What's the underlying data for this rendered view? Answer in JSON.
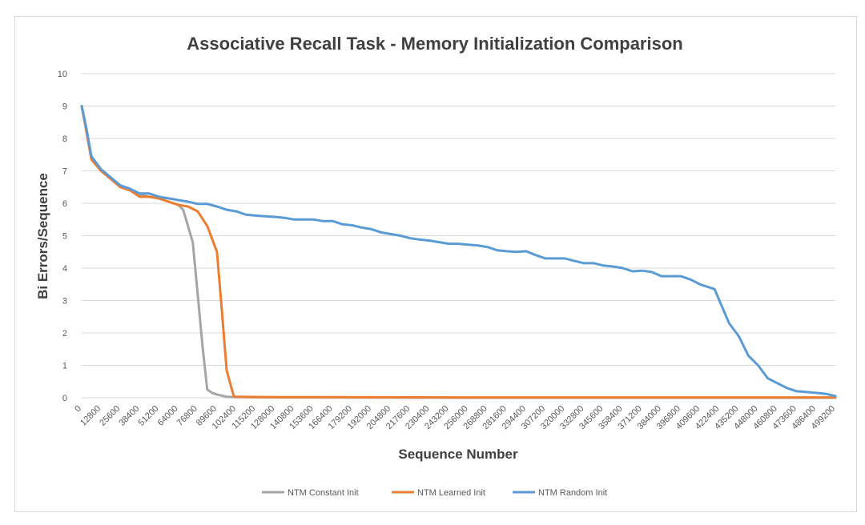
{
  "chart_data": {
    "type": "line",
    "title": "Associative Recall Task - Memory Initialization Comparison",
    "xlabel": "Sequence Number",
    "ylabel": "Bi Errors/Sequence",
    "ylim": [
      0,
      10
    ],
    "xlim": [
      0,
      499200
    ],
    "yticks": [
      0,
      1,
      2,
      3,
      4,
      5,
      6,
      7,
      8,
      9,
      10
    ],
    "xticks": [
      0,
      12800,
      25600,
      38400,
      51200,
      64000,
      76800,
      89600,
      102400,
      115200,
      128000,
      140800,
      153600,
      166400,
      179200,
      192000,
      204800,
      217600,
      230400,
      243200,
      256000,
      268800,
      281600,
      294400,
      307200,
      320000,
      332800,
      345600,
      358400,
      371200,
      384000,
      396800,
      409600,
      422400,
      435200,
      448000,
      460800,
      473600,
      486400,
      499200
    ],
    "grid": true,
    "legend_position": "bottom",
    "series": [
      {
        "name": "NTM Constant Init",
        "color": "#a5a5a5",
        "points": [
          [
            0,
            9.0
          ],
          [
            3200,
            8.2
          ],
          [
            6400,
            7.4
          ],
          [
            12800,
            7.0
          ],
          [
            19200,
            6.8
          ],
          [
            25600,
            6.5
          ],
          [
            32000,
            6.4
          ],
          [
            38400,
            6.25
          ],
          [
            44800,
            6.2
          ],
          [
            51200,
            6.15
          ],
          [
            57600,
            6.05
          ],
          [
            64000,
            5.95
          ],
          [
            67200,
            5.8
          ],
          [
            70400,
            5.3
          ],
          [
            73600,
            4.8
          ],
          [
            76800,
            3.2
          ],
          [
            80000,
            1.6
          ],
          [
            83200,
            0.25
          ],
          [
            86400,
            0.15
          ],
          [
            89600,
            0.1
          ],
          [
            96000,
            0.03
          ],
          [
            102400,
            0.02
          ],
          [
            128000,
            0.01
          ],
          [
            256000,
            0.0
          ],
          [
            499200,
            0.0
          ]
        ]
      },
      {
        "name": "NTM Learned Init",
        "color": "#ed7d31",
        "points": [
          [
            0,
            9.0
          ],
          [
            3200,
            8.2
          ],
          [
            6400,
            7.35
          ],
          [
            12800,
            7.0
          ],
          [
            19200,
            6.75
          ],
          [
            25600,
            6.5
          ],
          [
            32000,
            6.4
          ],
          [
            38400,
            6.2
          ],
          [
            44800,
            6.2
          ],
          [
            51200,
            6.15
          ],
          [
            57600,
            6.05
          ],
          [
            64000,
            5.95
          ],
          [
            70400,
            5.9
          ],
          [
            76800,
            5.75
          ],
          [
            83200,
            5.3
          ],
          [
            89600,
            4.5
          ],
          [
            93000,
            2.6
          ],
          [
            96000,
            0.85
          ],
          [
            99200,
            0.3
          ],
          [
            100800,
            0.04
          ],
          [
            102400,
            0.03
          ],
          [
            128000,
            0.02
          ],
          [
            256000,
            0.01
          ],
          [
            499200,
            0.01
          ]
        ]
      },
      {
        "name": "NTM Random Init",
        "color": "#5b9bd5",
        "points": [
          [
            0,
            9.0
          ],
          [
            3200,
            8.3
          ],
          [
            6400,
            7.45
          ],
          [
            12800,
            7.05
          ],
          [
            19200,
            6.8
          ],
          [
            25600,
            6.55
          ],
          [
            32000,
            6.45
          ],
          [
            38400,
            6.3
          ],
          [
            44800,
            6.3
          ],
          [
            51200,
            6.2
          ],
          [
            57600,
            6.15
          ],
          [
            64000,
            6.1
          ],
          [
            70400,
            6.05
          ],
          [
            76800,
            5.98
          ],
          [
            83200,
            5.98
          ],
          [
            89600,
            5.9
          ],
          [
            96000,
            5.8
          ],
          [
            102400,
            5.75
          ],
          [
            108800,
            5.65
          ],
          [
            115200,
            5.62
          ],
          [
            121600,
            5.6
          ],
          [
            128000,
            5.58
          ],
          [
            134400,
            5.55
          ],
          [
            140800,
            5.5
          ],
          [
            147200,
            5.5
          ],
          [
            153600,
            5.5
          ],
          [
            160000,
            5.45
          ],
          [
            166400,
            5.45
          ],
          [
            172800,
            5.35
          ],
          [
            179200,
            5.32
          ],
          [
            185600,
            5.25
          ],
          [
            192000,
            5.2
          ],
          [
            198400,
            5.1
          ],
          [
            204800,
            5.05
          ],
          [
            211200,
            5.0
          ],
          [
            217600,
            4.92
          ],
          [
            224000,
            4.88
          ],
          [
            230400,
            4.85
          ],
          [
            236800,
            4.8
          ],
          [
            243200,
            4.75
          ],
          [
            249600,
            4.75
          ],
          [
            256000,
            4.72
          ],
          [
            262400,
            4.7
          ],
          [
            268800,
            4.65
          ],
          [
            275200,
            4.55
          ],
          [
            281600,
            4.52
          ],
          [
            288000,
            4.5
          ],
          [
            294400,
            4.52
          ],
          [
            300800,
            4.4
          ],
          [
            307200,
            4.3
          ],
          [
            313600,
            4.3
          ],
          [
            320000,
            4.3
          ],
          [
            326400,
            4.22
          ],
          [
            332800,
            4.15
          ],
          [
            339200,
            4.15
          ],
          [
            345600,
            4.08
          ],
          [
            352000,
            4.05
          ],
          [
            358400,
            4.0
          ],
          [
            364800,
            3.9
          ],
          [
            371200,
            3.92
          ],
          [
            377600,
            3.88
          ],
          [
            384000,
            3.75
          ],
          [
            390400,
            3.75
          ],
          [
            396800,
            3.75
          ],
          [
            403200,
            3.65
          ],
          [
            409600,
            3.5
          ],
          [
            416000,
            3.4
          ],
          [
            419200,
            3.35
          ],
          [
            422400,
            3.0
          ],
          [
            428800,
            2.3
          ],
          [
            435200,
            1.9
          ],
          [
            441600,
            1.3
          ],
          [
            448000,
            1.0
          ],
          [
            454400,
            0.6
          ],
          [
            460800,
            0.45
          ],
          [
            467200,
            0.3
          ],
          [
            473600,
            0.2
          ],
          [
            480000,
            0.18
          ],
          [
            486400,
            0.15
          ],
          [
            492800,
            0.12
          ],
          [
            499200,
            0.05
          ]
        ]
      }
    ]
  }
}
